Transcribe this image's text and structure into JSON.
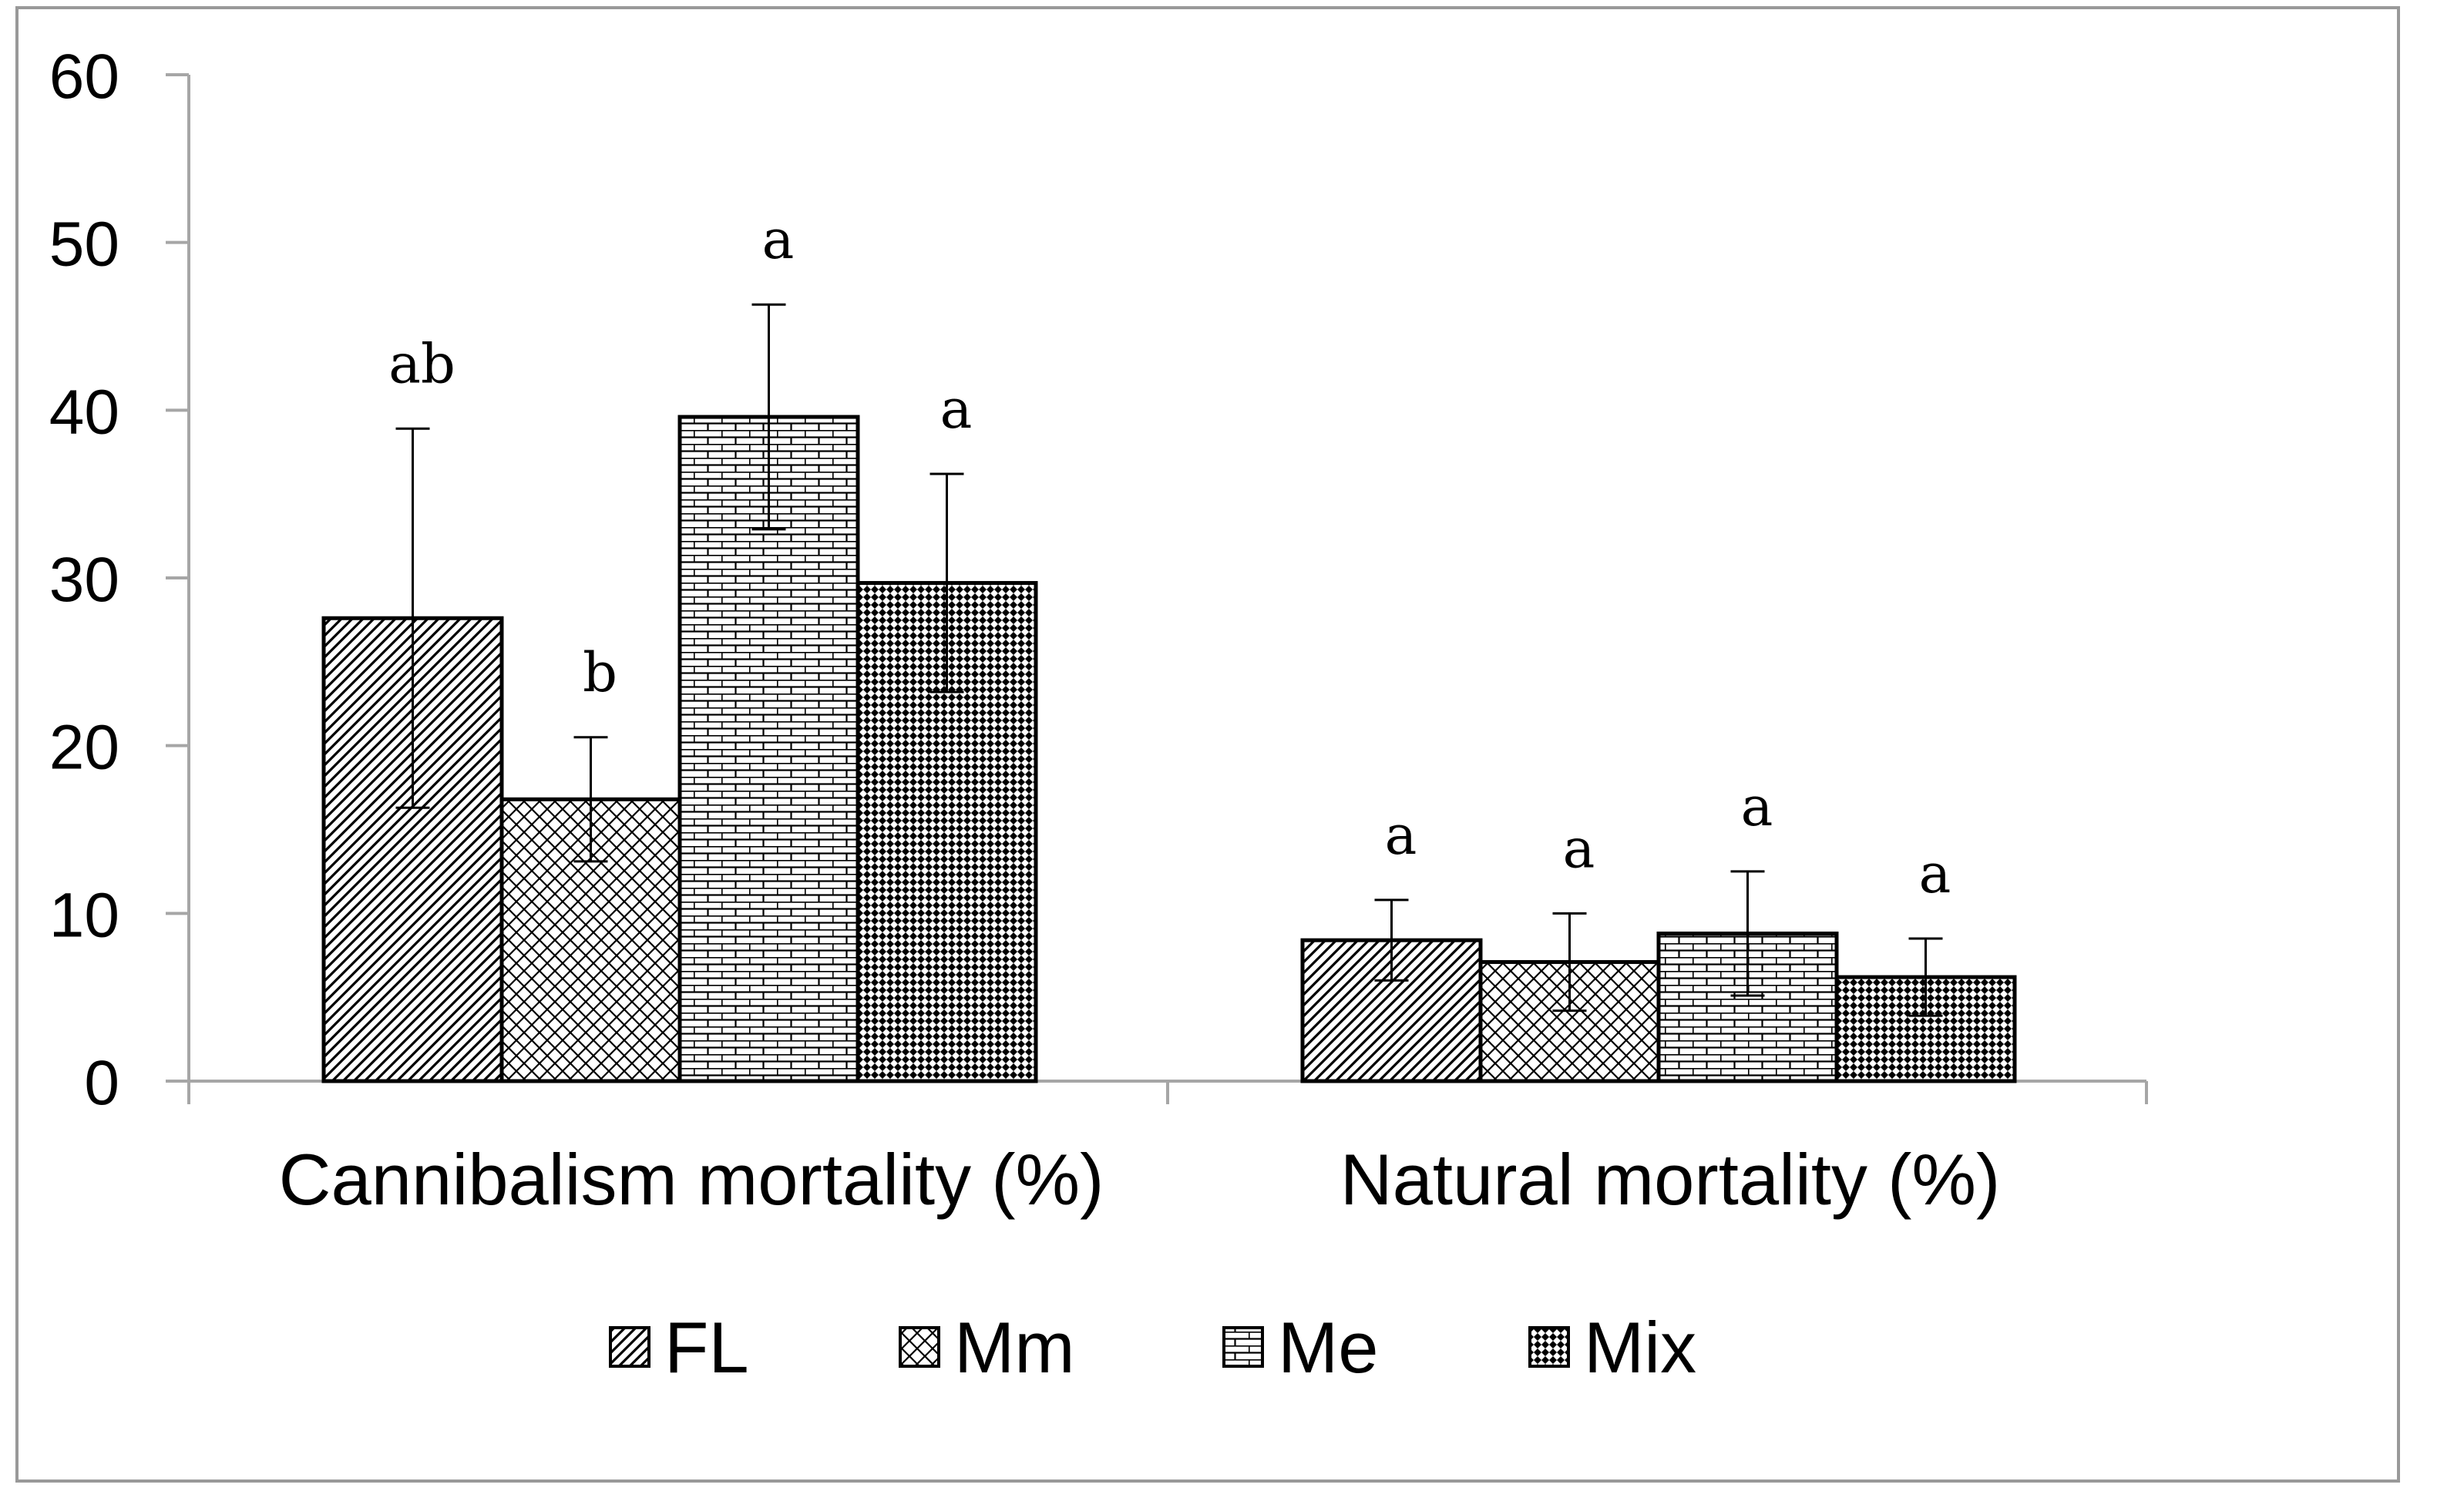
{
  "chart_data": {
    "type": "bar",
    "title": "",
    "xlabel": "",
    "ylabel": "",
    "ylim": [
      0,
      60
    ],
    "yticks": [
      0,
      10,
      20,
      30,
      40,
      50,
      60
    ],
    "categories": [
      "Cannibalism mortality (%)",
      "Natural mortality (%)"
    ],
    "series": [
      {
        "name": "FL",
        "pattern": "diagonal",
        "values": [
          27.6,
          8.4
        ],
        "errors": [
          11.3,
          2.4
        ],
        "letters": [
          "ab",
          "a"
        ]
      },
      {
        "name": "Mm",
        "pattern": "crosshatch",
        "values": [
          16.8,
          7.1
        ],
        "errors": [
          3.7,
          2.9
        ],
        "letters": [
          "b",
          "a"
        ]
      },
      {
        "name": "Me",
        "pattern": "brick",
        "values": [
          39.6,
          8.8
        ],
        "errors": [
          6.7,
          3.7
        ],
        "letters": [
          "a",
          "a"
        ]
      },
      {
        "name": "Mix",
        "pattern": "checker",
        "values": [
          29.7,
          6.2
        ],
        "errors": [
          6.5,
          2.3
        ],
        "letters": [
          "a",
          "a"
        ]
      }
    ],
    "legend_position": "bottom",
    "grid": false
  },
  "colors": {
    "bar_stroke": "#000000",
    "axis": "#a6a6a6",
    "frame": "#999999"
  }
}
